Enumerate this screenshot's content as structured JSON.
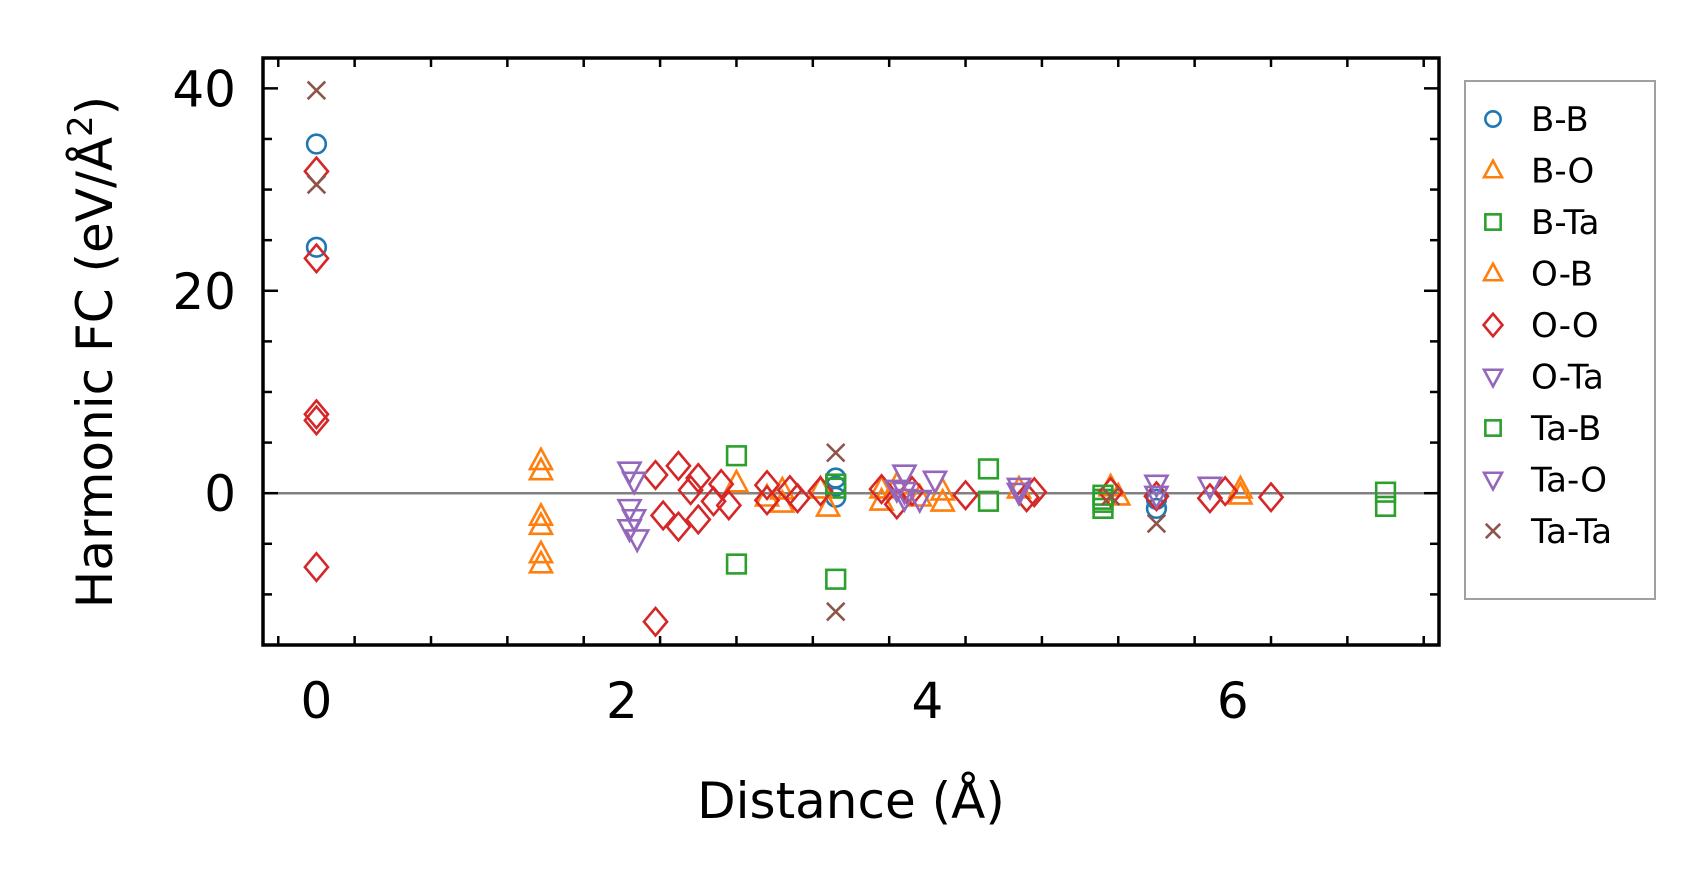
{
  "chart_data": {
    "type": "scatter",
    "title": "",
    "xlabel": "Distance (Å)",
    "ylabel_main": "Harmonic FC (eV/Å",
    "ylabel_sup": "2",
    "ylabel_end": ")",
    "xlim": [
      -0.35,
      7.35
    ],
    "ylim": [
      -15,
      43
    ],
    "xticks": [
      0,
      2,
      4,
      6
    ],
    "yticks": [
      0,
      20,
      40
    ],
    "xtick_labels": [
      "0",
      "2",
      "4",
      "6"
    ],
    "ytick_labels": [
      "0",
      "20",
      "40"
    ],
    "hline_y": 0,
    "legend_location": "outside-right",
    "series": [
      {
        "name": "B-B",
        "marker": "circle",
        "color": "#1f77b4",
        "points": [
          [
            0,
            34.5
          ],
          [
            0,
            24.3
          ],
          [
            3.4,
            1.5
          ],
          [
            3.4,
            0.7
          ],
          [
            3.4,
            -0.4
          ],
          [
            5.5,
            -1.5
          ],
          [
            5.5,
            -0.6
          ]
        ]
      },
      {
        "name": "B-O",
        "marker": "triangle-up",
        "color": "#ff7f0e",
        "points": [
          [
            1.47,
            3.2
          ],
          [
            1.47,
            2.2
          ],
          [
            1.47,
            -2.3
          ],
          [
            1.47,
            -3.2
          ],
          [
            1.47,
            -6.0
          ],
          [
            1.47,
            -7.0
          ],
          [
            3.05,
            0.3
          ],
          [
            3.05,
            -1.0
          ],
          [
            3.35,
            -1.4
          ],
          [
            3.7,
            0.4
          ],
          [
            3.7,
            -0.8
          ],
          [
            4.1,
            -0.9
          ],
          [
            4.1,
            0.2
          ],
          [
            4.6,
            0.4
          ],
          [
            5.25,
            -0.3
          ],
          [
            6.05,
            0.4
          ]
        ]
      },
      {
        "name": "B-Ta",
        "marker": "square",
        "color": "#2ca02c",
        "points": [
          [
            2.75,
            3.7
          ],
          [
            2.75,
            -7.0
          ],
          [
            3.4,
            -8.5
          ],
          [
            3.4,
            0.5
          ],
          [
            4.4,
            2.4
          ],
          [
            4.4,
            -0.8
          ],
          [
            5.15,
            -0.6
          ],
          [
            5.15,
            -1.5
          ],
          [
            7.0,
            0.1
          ],
          [
            7.0,
            -1.3
          ]
        ]
      },
      {
        "name": "O-B",
        "marker": "triangle-up",
        "color": "#ff7f0e",
        "points": [
          [
            2.75,
            1.0
          ],
          [
            2.95,
            -0.4
          ],
          [
            3.3,
            0.4
          ],
          [
            3.8,
            0.8
          ],
          [
            3.95,
            -0.4
          ],
          [
            5.2,
            0.6
          ],
          [
            6.05,
            -0.2
          ]
        ]
      },
      {
        "name": "O-O",
        "marker": "diamond",
        "color": "#d62728",
        "points": [
          [
            0,
            31.8
          ],
          [
            0,
            23.2
          ],
          [
            0,
            7.8
          ],
          [
            0,
            7.2
          ],
          [
            0,
            -7.3
          ],
          [
            2.22,
            -12.7
          ],
          [
            2.22,
            1.8
          ],
          [
            2.27,
            -2.2
          ],
          [
            2.37,
            2.7
          ],
          [
            2.37,
            -3.3
          ],
          [
            2.45,
            0.3
          ],
          [
            2.5,
            1.5
          ],
          [
            2.5,
            -2.6
          ],
          [
            2.6,
            -0.8
          ],
          [
            2.65,
            0.9
          ],
          [
            2.7,
            -1.2
          ],
          [
            2.95,
            0.8
          ],
          [
            2.95,
            -0.7
          ],
          [
            3.1,
            0.3
          ],
          [
            3.15,
            -0.5
          ],
          [
            3.3,
            0.2
          ],
          [
            3.7,
            0.4
          ],
          [
            3.8,
            -1.1
          ],
          [
            3.9,
            0.2
          ],
          [
            4.25,
            -0.2
          ],
          [
            4.65,
            -0.4
          ],
          [
            4.7,
            0.1
          ],
          [
            5.2,
            0.1
          ],
          [
            5.5,
            -0.3
          ],
          [
            5.85,
            -0.5
          ],
          [
            5.95,
            0.2
          ],
          [
            6.25,
            -0.4
          ]
        ]
      },
      {
        "name": "O-Ta",
        "marker": "triangle-down",
        "color": "#9467bd",
        "points": [
          [
            2.05,
            2.2
          ],
          [
            2.08,
            1.2
          ],
          [
            2.05,
            -1.5
          ],
          [
            2.08,
            -2.5
          ],
          [
            2.05,
            -3.5
          ],
          [
            2.1,
            -4.5
          ],
          [
            3.85,
            1.9
          ],
          [
            3.8,
            0.4
          ],
          [
            3.85,
            -0.5
          ],
          [
            4.05,
            1.3
          ],
          [
            4.6,
            0.6
          ],
          [
            5.5,
            0.9
          ],
          [
            5.85,
            0.7
          ]
        ]
      },
      {
        "name": "Ta-B",
        "marker": "square",
        "color": "#2ca02c",
        "points": [
          [
            3.4,
            0.9
          ],
          [
            5.15,
            -0.2
          ],
          [
            5.15,
            -0.9
          ]
        ]
      },
      {
        "name": "Ta-O",
        "marker": "triangle-down",
        "color": "#9467bd",
        "points": [
          [
            3.85,
            0.2
          ],
          [
            3.95,
            -0.6
          ],
          [
            4.6,
            0.1
          ],
          [
            5.5,
            -0.2
          ]
        ]
      },
      {
        "name": "Ta-Ta",
        "marker": "x",
        "color": "#8c564b",
        "points": [
          [
            0,
            39.8
          ],
          [
            0,
            30.5
          ],
          [
            3.4,
            4.0
          ],
          [
            3.4,
            -11.7
          ],
          [
            5.2,
            -0.3
          ],
          [
            5.5,
            -3.0
          ]
        ]
      }
    ]
  }
}
